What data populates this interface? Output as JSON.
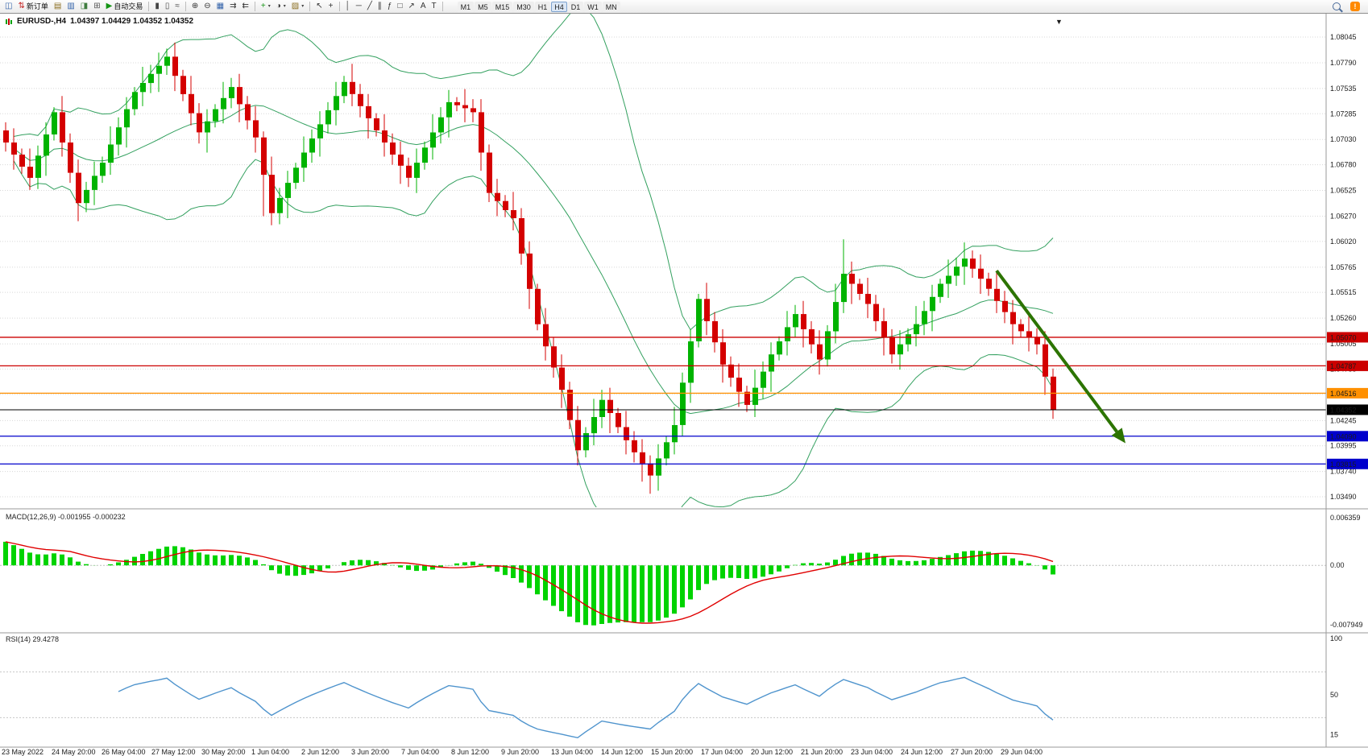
{
  "toolbar": {
    "buttons": [
      {
        "name": "terminal-icon-button",
        "glyph": "◫",
        "color": "#2f5fa8"
      },
      {
        "name": "new-order-button",
        "glyph": "⇅",
        "color": "#c22222",
        "label": "新订单"
      },
      {
        "name": "chart-profiles-button",
        "glyph": "▤",
        "color": "#8a6d1e"
      },
      {
        "name": "market-watch-button",
        "glyph": "▥",
        "color": "#2f5fa8"
      },
      {
        "name": "data-window-button",
        "glyph": "◨",
        "color": "#3f7d3f"
      },
      {
        "name": "navigator-button",
        "glyph": "⊞",
        "color": "#555555"
      },
      {
        "name": "autotrade-button",
        "glyph": "▶",
        "color": "#149414",
        "label": "自动交易"
      },
      {
        "sep": true
      },
      {
        "name": "bar-chart-type-button",
        "glyph": "▮",
        "color": "#444444"
      },
      {
        "name": "candle-chart-type-button",
        "glyph": "▯",
        "color": "#444444"
      },
      {
        "name": "line-chart-type-button",
        "glyph": "≈",
        "color": "#444444"
      },
      {
        "sep": true
      },
      {
        "name": "zoom-in-button",
        "glyph": "⊕",
        "color": "#333333"
      },
      {
        "name": "zoom-out-button",
        "glyph": "⊖",
        "color": "#333333"
      },
      {
        "name": "tile-windows-button",
        "glyph": "▦",
        "color": "#2f5fa8"
      },
      {
        "name": "auto-scroll-button",
        "glyph": "⇉",
        "color": "#333333"
      },
      {
        "name": "chart-shift-button",
        "glyph": "⇇",
        "color": "#333333"
      },
      {
        "sep": true
      },
      {
        "name": "indicators-button",
        "glyph": "+",
        "color": "#149414",
        "dropdown": true
      },
      {
        "name": "periods-button",
        "glyph": "◑",
        "color": "#333333",
        "dropdown": true
      },
      {
        "name": "templates-button",
        "glyph": "▨",
        "color": "#8a6d1e",
        "dropdown": true
      },
      {
        "sep": true
      },
      {
        "name": "cursor-button",
        "glyph": "↖",
        "color": "#333333"
      },
      {
        "name": "crosshair-button",
        "glyph": "+",
        "color": "#333333"
      },
      {
        "sep": true
      },
      {
        "name": "vertical-line-button",
        "glyph": "│",
        "color": "#333333"
      },
      {
        "name": "horizontal-line-button",
        "glyph": "─",
        "color": "#333333"
      },
      {
        "name": "trendline-button",
        "glyph": "╱",
        "color": "#333333"
      },
      {
        "name": "channel-button",
        "glyph": "∥",
        "color": "#333333"
      },
      {
        "name": "fibonacci-button",
        "glyph": "ƒ",
        "color": "#333333"
      },
      {
        "name": "shapes-button",
        "glyph": "□",
        "color": "#333333"
      },
      {
        "name": "arrows-button",
        "glyph": "↗",
        "color": "#333333"
      },
      {
        "name": "text-button",
        "glyph": "A",
        "color": "#333333"
      },
      {
        "name": "text-label-button",
        "glyph": "T",
        "color": "#333333"
      },
      {
        "sep": true
      }
    ],
    "timeframes": {
      "items": [
        "M1",
        "M5",
        "M15",
        "M30",
        "H1",
        "H4",
        "D1",
        "W1",
        "MN"
      ],
      "active": "H4"
    },
    "right_icons": {
      "alert_glyph": "!"
    }
  },
  "chart": {
    "symbol_period": "EURUSD-,H4",
    "ohlc": "1.04397 1.04429 1.04352 1.04352",
    "shift_marker": "▼",
    "price_axis": [
      "1.08045",
      "1.07790",
      "1.07535",
      "1.07285",
      "1.07030",
      "1.06780",
      "1.06525",
      "1.06270",
      "1.06020",
      "1.05765",
      "1.05515",
      "1.05260",
      "1.05005",
      "1.04755",
      "1.04505",
      "1.04245",
      "1.03995",
      "1.03740",
      "1.03490"
    ],
    "levels": [
      {
        "price": "1.05070",
        "value": 1.0507,
        "color": "#cc0000"
      },
      {
        "price": "1.04787",
        "value": 1.04787,
        "color": "#cc0000"
      },
      {
        "price": "1.04516",
        "value": 1.04516,
        "color": "#ff9000"
      },
      {
        "price": "1.04352",
        "value": 1.04352,
        "color": "#000000"
      },
      {
        "price": "1.04090",
        "value": 1.0409,
        "color": "#0000cc"
      },
      {
        "price": "1.03815",
        "value": 1.03815,
        "color": "#0000cc"
      }
    ],
    "time_axis": [
      "23 May 2022",
      "24 May 20:00",
      "26 May 04:00",
      "27 May 12:00",
      "30 May 20:00",
      "1 Jun 04:00",
      "2 Jun 12:00",
      "3 Jun 20:00",
      "7 Jun 04:00",
      "8 Jun 12:00",
      "9 Jun 20:00",
      "13 Jun 04:00",
      "14 Jun 12:00",
      "15 Jun 20:00",
      "17 Jun 04:00",
      "20 Jun 12:00",
      "21 Jun 20:00",
      "23 Jun 04:00",
      "24 Jun 12:00",
      "27 Jun 20:00",
      "29 Jun 04:00"
    ],
    "colors": {
      "up": "#00b300",
      "down": "#d40000",
      "bands": "#33a05f",
      "grid": "#d8d8d8",
      "macd_hist": "#00d300",
      "macd_signal": "#e00000",
      "rsi_line": "#4f94cd",
      "separator": "#9a9a9a"
    }
  },
  "chart_data": {
    "type": "candlestick",
    "symbol": "EURUSD",
    "period": "H4",
    "ylim": [
      1.0349,
      1.08045
    ],
    "closes": [
      1.07,
      1.0688,
      1.0676,
      1.0665,
      1.0687,
      1.0708,
      1.073,
      1.07,
      1.067,
      1.064,
      1.0653,
      1.0667,
      1.068,
      1.0698,
      1.0715,
      1.0733,
      1.075,
      1.0759,
      1.0768,
      1.0776,
      1.0785,
      1.0766,
      1.0748,
      1.0729,
      1.071,
      1.0721,
      1.0733,
      1.0744,
      1.0755,
      1.0738,
      1.0722,
      1.0705,
      1.0668,
      1.063,
      1.0645,
      1.066,
      1.0675,
      1.069,
      1.0704,
      1.0718,
      1.0732,
      1.0746,
      1.076,
      1.0748,
      1.0736,
      1.0724,
      1.0712,
      1.07,
      1.0688,
      1.0677,
      1.0665,
      1.068,
      1.0695,
      1.071,
      1.0725,
      1.074,
      1.0737,
      1.0734,
      1.073,
      1.069,
      1.065,
      1.0642,
      1.0633,
      1.0625,
      1.059,
      1.0555,
      1.052,
      1.0498,
      1.0477,
      1.0455,
      1.0425,
      1.0395,
      1.0412,
      1.0428,
      1.0445,
      1.0432,
      1.0418,
      1.0405,
      1.0393,
      1.0382,
      1.037,
      1.0387,
      1.0403,
      1.042,
      1.0462,
      1.0503,
      1.0545,
      1.0523,
      1.0502,
      1.048,
      1.0467,
      1.0453,
      1.044,
      1.0457,
      1.0473,
      1.049,
      1.0503,
      1.0517,
      1.053,
      1.0515,
      1.05,
      1.0485,
      1.0513,
      1.0542,
      1.057,
      1.056,
      1.055,
      1.054,
      1.0523,
      1.0507,
      1.049,
      1.05,
      1.051,
      1.052,
      1.0533,
      1.0547,
      1.056,
      1.0568,
      1.0577,
      1.0585,
      1.0575,
      1.0565,
      1.0555,
      1.0543,
      1.0532,
      1.052,
      1.0513,
      1.0507,
      1.05,
      1.0468,
      1.04352
    ],
    "first_open": 1.0712,
    "wick_upper_pattern": [
      8,
      14,
      6,
      18,
      10,
      12,
      5,
      16,
      9,
      13
    ],
    "wick_lower_pattern": [
      9,
      15,
      7,
      12,
      11,
      20,
      6,
      14,
      10,
      18
    ],
    "wick_overrides": {
      "32": {
        "low": 1.0627
      },
      "80": {
        "low": 1.0352
      },
      "104": {
        "high": 1.0604
      },
      "119": {
        "high": 1.0601
      }
    },
    "indicators": {
      "bollinger": {
        "period": 20,
        "deviation": 2
      },
      "macd": {
        "fast": 12,
        "slow": 26,
        "signal": 9,
        "label": "MACD(12,26,9) -0.001955 -0.000232",
        "scale_top": "0.006359",
        "scale_zero": "0.00",
        "scale_bottom": "-0.007949",
        "range": [
          -0.007949,
          0.006359
        ]
      },
      "rsi": {
        "period": 14,
        "label": "RSI(14) 29.4278",
        "scale": [
          "100",
          "50",
          "15"
        ],
        "levels": [
          70,
          30
        ]
      }
    },
    "arrow": {
      "from": {
        "index": 123,
        "price": 1.0573
      },
      "to": {
        "index": 139,
        "price": 1.0402
      },
      "color": "#2c7400"
    }
  }
}
